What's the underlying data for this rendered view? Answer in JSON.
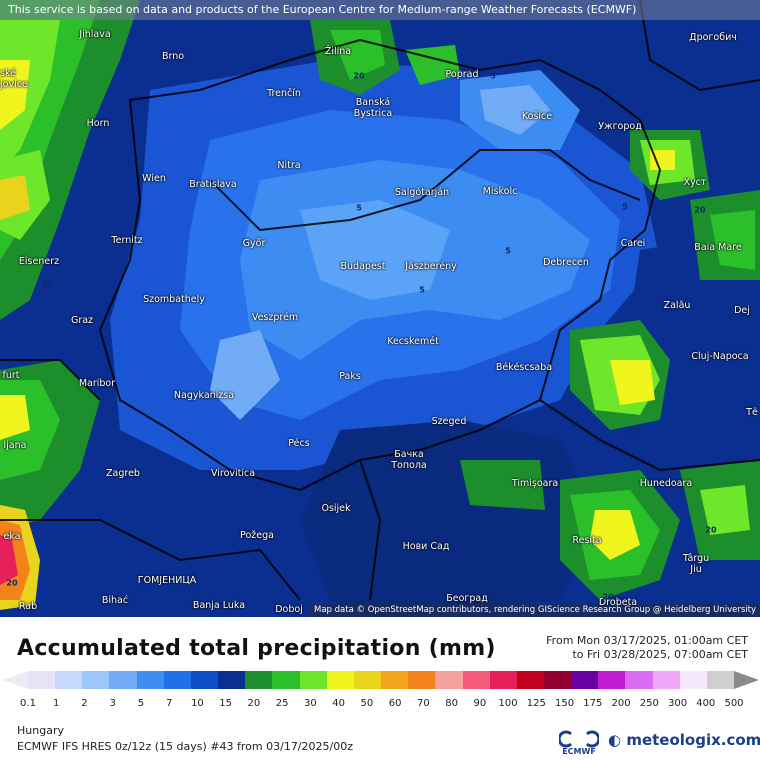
{
  "notice": "This service is based on data and products of the European Centre for Medium-range Weather Forecasts (ECMWF)",
  "attribution": "Map data © OpenStreetMap contributors, rendering GIScience Research Group @ Heidelberg University",
  "title": "Accumulated total precipitation (mm)",
  "period": {
    "from": "From Mon 03/17/2025, 01:00am CET",
    "to": "to Fri 03/28/2025, 07:00am CET"
  },
  "region": "Hungary",
  "model": "ECMWF IFS HRES 0z/12z (15 days) #43 from  03/17/2025/00z",
  "logos": {
    "ecmwf": "ECMWF",
    "meteologix": "meteologix.com"
  },
  "legend": {
    "ticks": [
      "0.1",
      "1",
      "2",
      "3",
      "5",
      "7",
      "10",
      "15",
      "20",
      "25",
      "30",
      "40",
      "50",
      "60",
      "70",
      "80",
      "90",
      "100",
      "125",
      "150",
      "175",
      "200",
      "250",
      "300",
      "400",
      "500"
    ],
    "colors": [
      "#e4e4f6",
      "#c6d9fb",
      "#9fc6fb",
      "#72acf7",
      "#3f8df2",
      "#1f6fe6",
      "#0f4fc8",
      "#0a2f8f",
      "#1c8f2c",
      "#2bbf2a",
      "#6ee62a",
      "#f0f51e",
      "#e8d41c",
      "#f3a51d",
      "#f3821b",
      "#f4a1a0",
      "#f65b7a",
      "#e5205a",
      "#c0001e",
      "#93002f",
      "#6a00a0",
      "#c21ad2",
      "#d96cf2",
      "#f0a8f8",
      "#f8e8fb",
      "#cfcfcf"
    ]
  },
  "cities": [
    {
      "name": "Jihlava"
    },
    {
      "name": "Brno"
    },
    {
      "name": "Žilina"
    },
    {
      "name": "Poprad"
    },
    {
      "name": "Дрогобич"
    },
    {
      "name": "Trenčín"
    },
    {
      "name": "Banská Bystrica"
    },
    {
      "name": "Košice"
    },
    {
      "name": "Ужгород"
    },
    {
      "name": "Horn"
    },
    {
      "name": "Nitra"
    },
    {
      "name": "Wien"
    },
    {
      "name": "Bratislava"
    },
    {
      "name": "Salgótarján"
    },
    {
      "name": "Miskolc"
    },
    {
      "name": "Хуст"
    },
    {
      "name": "Ternitz"
    },
    {
      "name": "Győr"
    },
    {
      "name": "Budapest"
    },
    {
      "name": "Jászberény"
    },
    {
      "name": "Debrecen"
    },
    {
      "name": "Carei"
    },
    {
      "name": "Baia Mare"
    },
    {
      "name": "Eisenerz"
    },
    {
      "name": "Szombathely"
    },
    {
      "name": "Graz"
    },
    {
      "name": "Veszprém"
    },
    {
      "name": "Zalău"
    },
    {
      "name": "Dej"
    },
    {
      "name": "Kecskemét"
    },
    {
      "name": "Cluj-Napoca"
    },
    {
      "name": "Maribor"
    },
    {
      "name": "Paks"
    },
    {
      "name": "Békéscsaba"
    },
    {
      "name": "Nagykanizsa"
    },
    {
      "name": "Szeged"
    },
    {
      "name": "Pécs"
    },
    {
      "name": "Zagreb"
    },
    {
      "name": "Virovitica"
    },
    {
      "name": "Бачка Топола"
    },
    {
      "name": "Timișoara"
    },
    {
      "name": "Hunedoara"
    },
    {
      "name": "Osijek"
    },
    {
      "name": "Požega"
    },
    {
      "name": "Нови Сад"
    },
    {
      "name": "Reșița"
    },
    {
      "name": "Târgu Jiu"
    },
    {
      "name": "ГОМЈЕНИЦА"
    },
    {
      "name": "Bihać"
    },
    {
      "name": "Banja Luka"
    },
    {
      "name": "Doboj"
    },
    {
      "name": "Београд"
    },
    {
      "name": "Drobeta"
    },
    {
      "name": "ljana"
    },
    {
      "name": "furt"
    },
    {
      "name": "ské jovice"
    },
    {
      "name": "Тё"
    },
    {
      "name": "eka"
    },
    {
      "name": "Rab"
    }
  ],
  "isolines": [
    "5",
    "5",
    "5",
    "5",
    "5",
    "20",
    "20",
    "20",
    "20",
    "20",
    "20",
    "20"
  ]
}
